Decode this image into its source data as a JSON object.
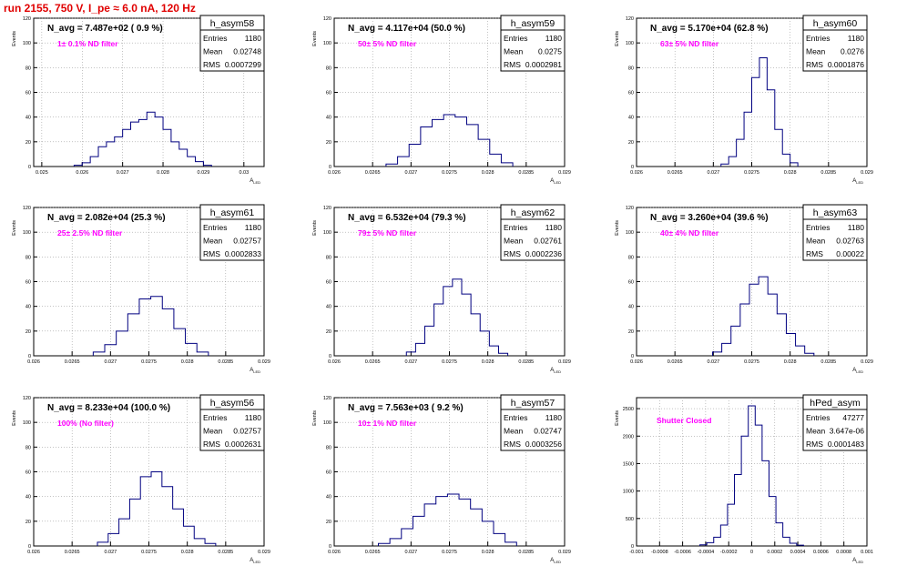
{
  "page_title": "run 2155,   750 V, I_pe ≈ 6.0 nA, 120 Hz",
  "colors": {
    "line": "#000080",
    "annot": "#ff00ff",
    "title": "#e00000",
    "grid": "#888888"
  },
  "chart_data": [
    {
      "type": "histogram",
      "name": "h_asym58",
      "entries": "1180",
      "mean": "0.02748",
      "rms": "0.0007299",
      "navg": "N_avg = 7.487e+02 ( 0.9 %)",
      "annot": "1± 0.1% ND filter",
      "ylabel": "Events",
      "xlabel": "A_LED",
      "xlim": [
        0.0248,
        0.0305
      ],
      "ylim": [
        0,
        120
      ],
      "xticks": [
        "0.025",
        "0.026",
        "0.027",
        "0.028",
        "0.029",
        "0.03"
      ],
      "xtick_vals": [
        0.025,
        0.026,
        0.027,
        0.028,
        0.029,
        0.03
      ],
      "yticks": [
        0,
        20,
        40,
        60,
        80,
        100,
        120
      ],
      "centers": [
        0.0259,
        0.0261,
        0.0263,
        0.0265,
        0.0267,
        0.0269,
        0.0271,
        0.0273,
        0.0275,
        0.0277,
        0.0279,
        0.0281,
        0.0283,
        0.0285,
        0.0287,
        0.0289,
        0.0291
      ],
      "values": [
        1,
        3,
        8,
        16,
        20,
        24,
        30,
        36,
        38,
        44,
        40,
        30,
        20,
        14,
        8,
        4,
        1
      ]
    },
    {
      "type": "histogram",
      "name": "h_asym59",
      "entries": "1180",
      "mean": "0.0275",
      "rms": "0.0002981",
      "navg": "N_avg = 4.117e+04 (50.0 %)",
      "annot": "50± 5% ND filter",
      "ylabel": "Events",
      "xlabel": "A_LED",
      "xlim": [
        0.026,
        0.029
      ],
      "ylim": [
        0,
        120
      ],
      "xticks": [
        "0.026",
        "0.0265",
        "0.027",
        "0.0275",
        "0.028",
        "0.0285",
        "0.029"
      ],
      "xtick_vals": [
        0.026,
        0.0265,
        0.027,
        0.0275,
        0.028,
        0.0285,
        0.029
      ],
      "yticks": [
        0,
        20,
        40,
        60,
        80,
        100,
        120
      ],
      "centers": [
        0.02675,
        0.0269,
        0.02705,
        0.0272,
        0.02735,
        0.0275,
        0.02765,
        0.0278,
        0.02795,
        0.0281,
        0.02825
      ],
      "values": [
        2,
        8,
        18,
        32,
        38,
        42,
        40,
        34,
        22,
        10,
        3
      ]
    },
    {
      "type": "histogram",
      "name": "h_asym60",
      "entries": "1180",
      "mean": "0.0276",
      "rms": "0.0001876",
      "navg": "N_avg = 5.170e+04 (62.8 %)",
      "annot": "63± 5% ND filter",
      "ylabel": "Events",
      "xlabel": "A_LED",
      "xlim": [
        0.026,
        0.029
      ],
      "ylim": [
        0,
        120
      ],
      "xticks": [
        "0.026",
        "0.0265",
        "0.027",
        "0.0275",
        "0.028",
        "0.0285",
        "0.029"
      ],
      "xtick_vals": [
        0.026,
        0.0265,
        0.027,
        0.0275,
        0.028,
        0.0285,
        0.029
      ],
      "yticks": [
        0,
        20,
        40,
        60,
        80,
        100,
        120
      ],
      "centers": [
        0.02715,
        0.02725,
        0.02735,
        0.02745,
        0.02755,
        0.02765,
        0.02775,
        0.02785,
        0.02795,
        0.02805
      ],
      "values": [
        2,
        8,
        22,
        44,
        72,
        88,
        62,
        30,
        10,
        3
      ]
    },
    {
      "type": "histogram",
      "name": "h_asym61",
      "entries": "1180",
      "mean": "0.02757",
      "rms": "0.0002833",
      "navg": "N_avg = 2.082e+04 (25.3 %)",
      "annot": "25± 2.5% ND filter",
      "ylabel": "Events",
      "xlabel": "A_LED",
      "xlim": [
        0.026,
        0.029
      ],
      "ylim": [
        0,
        120
      ],
      "xticks": [
        "0.026",
        "0.0265",
        "0.027",
        "0.0275",
        "0.028",
        "0.0285",
        "0.029"
      ],
      "xtick_vals": [
        0.026,
        0.0265,
        0.027,
        0.0275,
        0.028,
        0.0285,
        0.029
      ],
      "yticks": [
        0,
        20,
        40,
        60,
        80,
        100,
        120
      ],
      "centers": [
        0.02685,
        0.027,
        0.02715,
        0.0273,
        0.02745,
        0.0276,
        0.02775,
        0.0279,
        0.02805,
        0.0282
      ],
      "values": [
        3,
        9,
        20,
        34,
        46,
        48,
        38,
        22,
        10,
        3
      ]
    },
    {
      "type": "histogram",
      "name": "h_asym62",
      "entries": "1180",
      "mean": "0.02761",
      "rms": "0.0002236",
      "navg": "N_avg = 6.532e+04 (79.3 %)",
      "annot": "79± 5% ND filter",
      "ylabel": "Events",
      "xlabel": "A_LED",
      "xlim": [
        0.026,
        0.029
      ],
      "ylim": [
        0,
        120
      ],
      "xticks": [
        "0.026",
        "0.0265",
        "0.027",
        "0.0275",
        "0.028",
        "0.0285",
        "0.029"
      ],
      "xtick_vals": [
        0.026,
        0.0265,
        0.027,
        0.0275,
        0.028,
        0.0285,
        0.029
      ],
      "yticks": [
        0,
        20,
        40,
        60,
        80,
        100,
        120
      ],
      "centers": [
        0.027,
        0.02712,
        0.02724,
        0.02736,
        0.02748,
        0.0276,
        0.02772,
        0.02784,
        0.02796,
        0.02808,
        0.0282
      ],
      "values": [
        3,
        10,
        24,
        42,
        56,
        62,
        50,
        34,
        20,
        8,
        2
      ]
    },
    {
      "type": "histogram",
      "name": "h_asym63",
      "entries": "1180",
      "mean": "0.02763",
      "rms": "0.00022",
      "navg": "N_avg = 3.260e+04 (39.6 %)",
      "annot": "40± 4% ND filter",
      "ylabel": "Events",
      "xlabel": "A_LED",
      "xlim": [
        0.026,
        0.029
      ],
      "ylim": [
        0,
        120
      ],
      "xticks": [
        "0.026",
        "0.0265",
        "0.027",
        "0.0275",
        "0.028",
        "0.0285",
        "0.029"
      ],
      "xtick_vals": [
        0.026,
        0.0265,
        0.027,
        0.0275,
        0.028,
        0.0285,
        0.029
      ],
      "yticks": [
        0,
        20,
        40,
        60,
        80,
        100,
        120
      ],
      "centers": [
        0.02705,
        0.02717,
        0.02729,
        0.02741,
        0.02753,
        0.02765,
        0.02777,
        0.02789,
        0.02801,
        0.02813,
        0.02825
      ],
      "values": [
        3,
        10,
        24,
        42,
        58,
        64,
        50,
        34,
        18,
        8,
        2
      ]
    },
    {
      "type": "histogram",
      "name": "h_asym56",
      "entries": "1180",
      "mean": "0.02757",
      "rms": "0.0002631",
      "navg": "N_avg = 8.233e+04 (100.0 %)",
      "annot": "100% (No filter)",
      "ylabel": "Events",
      "xlabel": "A_LED",
      "xlim": [
        0.026,
        0.029
      ],
      "ylim": [
        0,
        120
      ],
      "xticks": [
        "0.026",
        "0.0265",
        "0.027",
        "0.0275",
        "0.028",
        "0.0285",
        "0.029"
      ],
      "xtick_vals": [
        0.026,
        0.0265,
        0.027,
        0.0275,
        0.028,
        0.0285,
        0.029
      ],
      "yticks": [
        0,
        20,
        40,
        60,
        80,
        100,
        120
      ],
      "centers": [
        0.0269,
        0.02704,
        0.02718,
        0.02732,
        0.02746,
        0.0276,
        0.02774,
        0.02788,
        0.02802,
        0.02816,
        0.0283
      ],
      "values": [
        3,
        10,
        22,
        38,
        56,
        60,
        48,
        30,
        16,
        6,
        2
      ]
    },
    {
      "type": "histogram",
      "name": "h_asym57",
      "entries": "1180",
      "mean": "0.02747",
      "rms": "0.0003256",
      "navg": "N_avg = 7.563e+03 ( 9.2 %)",
      "annot": "10± 1% ND filter",
      "ylabel": "Events",
      "xlabel": "A_LED",
      "xlim": [
        0.026,
        0.029
      ],
      "ylim": [
        0,
        120
      ],
      "xticks": [
        "0.026",
        "0.0265",
        "0.027",
        "0.0275",
        "0.028",
        "0.0285",
        "0.029"
      ],
      "xtick_vals": [
        0.026,
        0.0265,
        0.027,
        0.0275,
        0.028,
        0.0285,
        0.029
      ],
      "yticks": [
        0,
        20,
        40,
        60,
        80,
        100,
        120
      ],
      "centers": [
        0.02665,
        0.0268,
        0.02695,
        0.0271,
        0.02725,
        0.0274,
        0.02755,
        0.0277,
        0.02785,
        0.028,
        0.02815,
        0.0283
      ],
      "values": [
        2,
        6,
        14,
        24,
        34,
        40,
        42,
        38,
        30,
        20,
        10,
        3
      ]
    },
    {
      "type": "histogram",
      "name": "hPed_asym",
      "entries": "47277",
      "mean": "3.647e-06",
      "rms": "0.0001483",
      "navg": "",
      "annot": "Shutter Closed",
      "ylabel": "Events",
      "xlabel": "A_LED",
      "xlim": [
        -0.001,
        0.001
      ],
      "ylim": [
        0,
        2700
      ],
      "xticks": [
        "-0.001",
        "-0.0008",
        "-0.0006",
        "-0.0004",
        "-0.0002",
        "0",
        "0.0002",
        "0.0004",
        "0.0006",
        "0.0008",
        "0.001"
      ],
      "xtick_vals": [
        -0.001,
        -0.0008,
        -0.0006,
        -0.0004,
        -0.0002,
        0,
        0.0002,
        0.0004,
        0.0006,
        0.0008,
        0.001
      ],
      "yticks": [
        0,
        500,
        1000,
        1500,
        2000,
        2500
      ],
      "centers": [
        -0.00042,
        -0.00036,
        -0.0003,
        -0.00024,
        -0.00018,
        -0.00012,
        -6e-05,
        0.0,
        6e-05,
        0.00012,
        0.00018,
        0.00024,
        0.0003,
        0.00036,
        0.00042
      ],
      "values": [
        20,
        60,
        160,
        380,
        760,
        1300,
        2000,
        2550,
        2200,
        1550,
        900,
        420,
        160,
        50,
        15
      ]
    }
  ]
}
